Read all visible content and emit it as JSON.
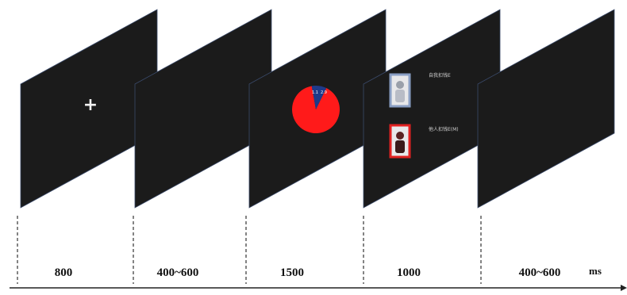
{
  "frames": [
    {
      "id": "fixation",
      "duration": "800",
      "content": "fixation",
      "fixation_symbol": "+"
    },
    {
      "id": "blank-1",
      "duration": "400~600",
      "content": "blank"
    },
    {
      "id": "pie-cue",
      "duration": "1500",
      "content": "pie",
      "pie": {
        "big_fraction": 0.9,
        "small_fraction": 0.1,
        "big_color": "#ff1a1a",
        "small_color": "#1e3a8a",
        "small_labels": [
          "1.1",
          "2.9"
        ]
      }
    },
    {
      "id": "choice",
      "duration": "1000",
      "content": "choice",
      "options": [
        {
          "label": "自我扣钱E",
          "frame_color": "#8a9fc4"
        },
        {
          "label": "他人扣钱E(M)",
          "frame_color": "#e02020"
        }
      ]
    },
    {
      "id": "blank-2",
      "duration": "400~600",
      "content": "blank"
    }
  ],
  "time_unit": "ms",
  "colors": {
    "screen": "#1b1b1b",
    "timeline": "#222222"
  }
}
